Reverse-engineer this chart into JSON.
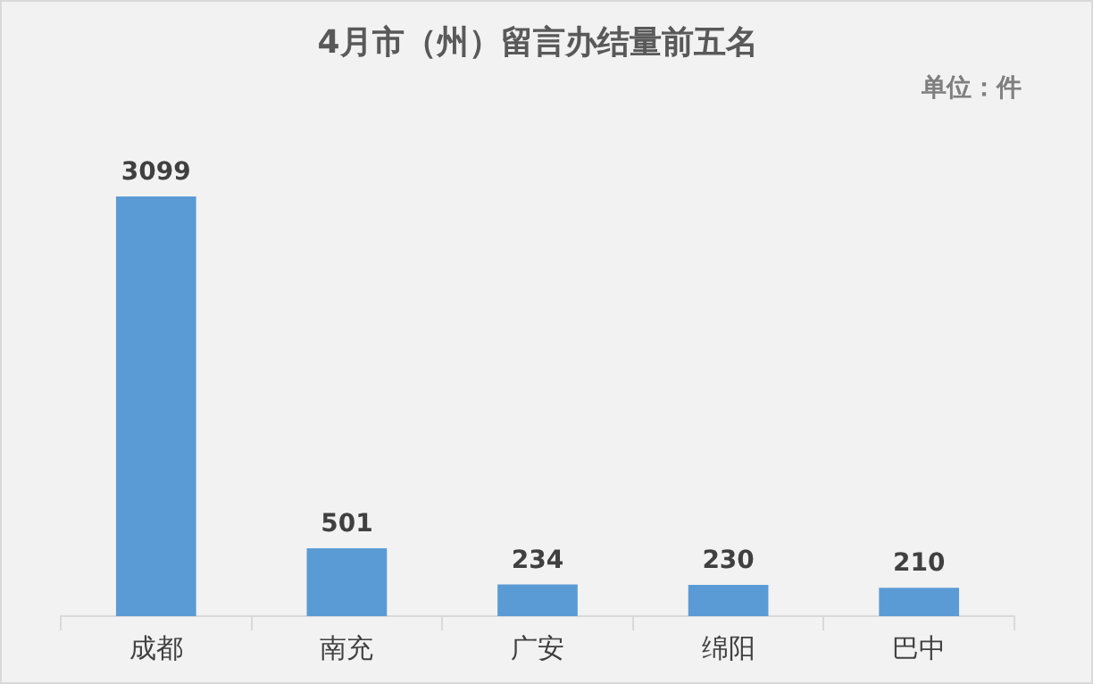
{
  "chart_data": {
    "type": "bar",
    "title": "4月市（州）留言办结量前五名",
    "annotations": [
      "单位：件"
    ],
    "categories": [
      "成都",
      "南充",
      "广安",
      "绵阳",
      "巴中"
    ],
    "values": [
      3099,
      501,
      234,
      230,
      210
    ],
    "color": "#5b9bd5",
    "data_labels": true,
    "grid": false,
    "legend": false
  }
}
